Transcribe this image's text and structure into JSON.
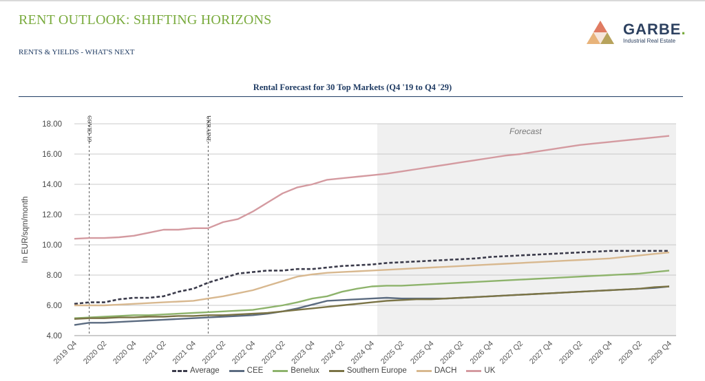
{
  "header": {
    "title": "RENT OUTLOOK: SHIFTING HORIZONS",
    "subtitle": "RENTS & YIELDS - WHAT'S NEXT"
  },
  "logo": {
    "name": "GARBE",
    "dot": ".",
    "tagline": "Industrial Real Estate"
  },
  "chart_data": {
    "type": "line",
    "title": "Rental Forecast for 30 Top Markets (Q4 '19 to Q4 '29)",
    "ylabel": "In EUR/sqm/month",
    "xlabel": "",
    "ylim": [
      4,
      18
    ],
    "yticks": [
      "4.00",
      "6.00",
      "8.00",
      "10.00",
      "12.00",
      "14.00",
      "16.00",
      "18.00"
    ],
    "xticks": [
      "2019 Q4",
      "2020 Q2",
      "2020 Q4",
      "2021 Q2",
      "2021 Q4",
      "2022 Q2",
      "2022 Q4",
      "2023 Q2",
      "2023 Q4",
      "2024 Q2",
      "2024 Q4",
      "2025 Q2",
      "2025 Q4",
      "2026 Q2",
      "2026 Q4",
      "2027 Q2",
      "2027 Q4",
      "2028 Q2",
      "2028 Q4",
      "2029 Q2",
      "2029 Q4"
    ],
    "grid": true,
    "legend_position": "bottom",
    "forecast_label": "Forecast",
    "forecast_start": "2024 Q4",
    "events": [
      {
        "label": "COVID-19",
        "x": 0.5
      },
      {
        "label": "UKRAINE",
        "x": 4.5
      }
    ],
    "series": [
      {
        "name": "Average",
        "color": "#3a3a4a",
        "dashed": true,
        "values": [
          6.1,
          6.2,
          6.2,
          6.4,
          6.5,
          6.5,
          6.6,
          6.9,
          7.1,
          7.5,
          7.8,
          8.1,
          8.2,
          8.3,
          8.3,
          8.4,
          8.4,
          8.5,
          8.6,
          8.65,
          8.7,
          8.8,
          8.85,
          8.9,
          8.95,
          9.0,
          9.05,
          9.1,
          9.2,
          9.25,
          9.3,
          9.35,
          9.4,
          9.45,
          9.5,
          9.55,
          9.6,
          9.6,
          9.6,
          9.6,
          9.6
        ]
      },
      {
        "name": "CEE",
        "color": "#5b6b80",
        "dashed": false,
        "values": [
          4.7,
          4.85,
          4.85,
          4.9,
          4.95,
          5.0,
          5.05,
          5.1,
          5.15,
          5.2,
          5.25,
          5.3,
          5.35,
          5.45,
          5.6,
          5.8,
          6.05,
          6.3,
          6.35,
          6.4,
          6.45,
          6.5,
          6.45,
          6.45,
          6.45,
          6.45,
          6.5,
          6.55,
          6.6,
          6.65,
          6.7,
          6.75,
          6.8,
          6.85,
          6.9,
          6.95,
          7.0,
          7.05,
          7.1,
          7.15,
          7.25
        ]
      },
      {
        "name": "Benelux",
        "color": "#8db36b",
        "dashed": false,
        "values": [
          5.15,
          5.2,
          5.25,
          5.3,
          5.35,
          5.35,
          5.4,
          5.45,
          5.5,
          5.55,
          5.6,
          5.65,
          5.7,
          5.85,
          6.0,
          6.2,
          6.45,
          6.6,
          6.9,
          7.1,
          7.25,
          7.3,
          7.3,
          7.35,
          7.4,
          7.45,
          7.5,
          7.55,
          7.6,
          7.65,
          7.7,
          7.75,
          7.8,
          7.85,
          7.9,
          7.95,
          8.0,
          8.05,
          8.1,
          8.2,
          8.3
        ]
      },
      {
        "name": "Southern Europe",
        "color": "#7a7345",
        "dashed": false,
        "values": [
          5.1,
          5.15,
          5.15,
          5.2,
          5.2,
          5.25,
          5.25,
          5.3,
          5.3,
          5.35,
          5.35,
          5.4,
          5.45,
          5.5,
          5.6,
          5.7,
          5.8,
          5.9,
          6.0,
          6.1,
          6.2,
          6.3,
          6.35,
          6.4,
          6.4,
          6.45,
          6.5,
          6.55,
          6.6,
          6.65,
          6.7,
          6.75,
          6.8,
          6.85,
          6.9,
          6.95,
          7.0,
          7.05,
          7.1,
          7.2,
          7.25
        ]
      },
      {
        "name": "DACH",
        "color": "#d8b88f",
        "dashed": false,
        "values": [
          6.0,
          6.0,
          6.0,
          6.05,
          6.1,
          6.15,
          6.2,
          6.25,
          6.3,
          6.45,
          6.6,
          6.8,
          7.0,
          7.3,
          7.6,
          7.9,
          8.05,
          8.15,
          8.2,
          8.25,
          8.3,
          8.35,
          8.4,
          8.45,
          8.5,
          8.55,
          8.6,
          8.65,
          8.7,
          8.75,
          8.8,
          8.85,
          8.9,
          8.95,
          9.0,
          9.05,
          9.1,
          9.2,
          9.3,
          9.4,
          9.5
        ]
      },
      {
        "name": "UK",
        "color": "#d49aa0",
        "dashed": false,
        "values": [
          10.4,
          10.45,
          10.45,
          10.5,
          10.6,
          10.8,
          11.0,
          11.0,
          11.1,
          11.1,
          11.5,
          11.7,
          12.2,
          12.8,
          13.4,
          13.8,
          14.0,
          14.3,
          14.4,
          14.5,
          14.6,
          14.7,
          14.85,
          15.0,
          15.15,
          15.3,
          15.45,
          15.6,
          15.75,
          15.9,
          16.0,
          16.15,
          16.3,
          16.45,
          16.6,
          16.7,
          16.8,
          16.9,
          17.0,
          17.1,
          17.2
        ]
      }
    ]
  }
}
